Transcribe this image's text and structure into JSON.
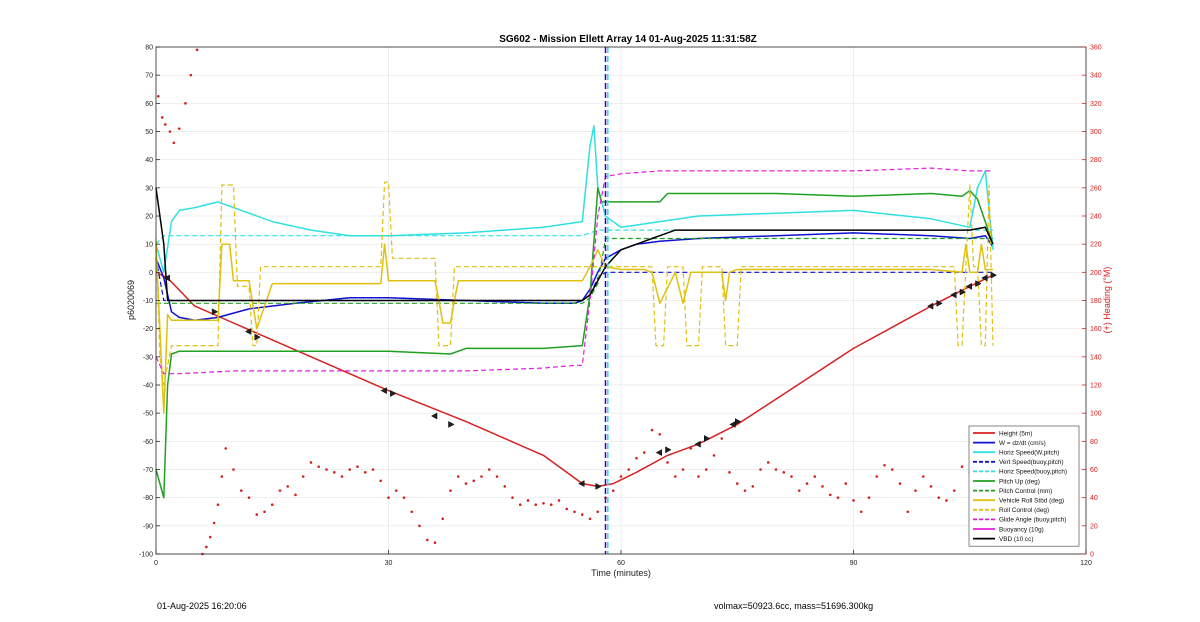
{
  "footer": {
    "timestamp": "01-Aug-2025 16:20:06",
    "summary": "volmax=50923.6cc, mass=51696.300kg"
  },
  "chart_data": {
    "type": "line",
    "title": "SG602 - Mission Ellett Array 14 01-Aug-2025 11:31:58Z",
    "xlabel": "Time (minutes)",
    "ylabel": "p6020069",
    "y2label": "(+) Heading (°M)",
    "xlim": [
      0,
      120
    ],
    "ylim": [
      -100,
      80
    ],
    "y2lim": [
      0,
      360
    ],
    "xticks": [
      0,
      30,
      60,
      90,
      120
    ],
    "yticks": [
      -100,
      -90,
      -80,
      -70,
      -60,
      -50,
      -40,
      -30,
      -20,
      -10,
      0,
      10,
      20,
      30,
      40,
      50,
      60,
      70,
      80
    ],
    "y2ticks": [
      0,
      20,
      40,
      60,
      80,
      100,
      120,
      140,
      160,
      180,
      200,
      220,
      240,
      260,
      280,
      300,
      320,
      340,
      360
    ],
    "grid": true,
    "legend_position": "bottom-right",
    "colors": {
      "height": "#d62020",
      "w": "#1010d0",
      "horiz": "#30e0e0",
      "pitch": "#20a020",
      "yellow": "#e0c010",
      "glide": "#e020e0",
      "vbd": "#000000",
      "right_axis": "#d62020"
    },
    "vertical_lines": [
      {
        "x": 58,
        "color": "#1010d0",
        "style": "dashed"
      },
      {
        "x": 58.3,
        "color": "#30e0e0",
        "style": "dashed"
      }
    ],
    "series": [
      {
        "name": "Height (5m)",
        "color": "#d62020",
        "style": "solid",
        "width": 1.5,
        "x": [
          0,
          1.5,
          5,
          10,
          20,
          30,
          40,
          50,
          55,
          57,
          59,
          62,
          66,
          70,
          75,
          80,
          90,
          100,
          105,
          108
        ],
        "y": [
          0,
          -2,
          -12,
          -18,
          -30,
          -42,
          -53,
          -65,
          -75,
          -76,
          -75,
          -71,
          -65,
          -61,
          -54,
          -45,
          -27,
          -12,
          -5,
          -1
        ]
      },
      {
        "name": "W = dz/dt (cm/s)",
        "color": "#1010d0",
        "style": "solid",
        "width": 1.5,
        "x": [
          0,
          1,
          2,
          3,
          5,
          8,
          12,
          18,
          25,
          30,
          40,
          50,
          54,
          55,
          56,
          57,
          58,
          60,
          62,
          65,
          70,
          80,
          90,
          100,
          105,
          107,
          108
        ],
        "y": [
          5,
          -2,
          -14,
          -16,
          -17,
          -16,
          -13,
          -11,
          -9,
          -9,
          -10,
          -11,
          -11,
          -10,
          -6,
          0,
          5,
          8,
          10,
          11,
          12,
          13,
          14,
          13,
          12,
          13,
          9
        ]
      },
      {
        "name": "Horiz Speed(W,pitch)",
        "color": "#30e0e0",
        "style": "solid",
        "width": 1.5,
        "x": [
          0,
          1,
          2,
          3,
          5,
          8,
          10,
          15,
          20,
          25,
          30,
          40,
          50,
          55,
          56,
          56.5,
          57,
          58,
          60,
          65,
          70,
          80,
          90,
          100,
          105,
          106,
          107,
          108
        ],
        "y": [
          10,
          0,
          18,
          22,
          23,
          25,
          23,
          18,
          15,
          13,
          13,
          14,
          16,
          18,
          45,
          52,
          30,
          20,
          16,
          18,
          20,
          21,
          22,
          19,
          16,
          30,
          36,
          8
        ]
      },
      {
        "name": "Vert Speed(buoy,pitch)",
        "color": "#1010d0",
        "style": "dashed",
        "width": 1.2,
        "x": [
          0,
          1,
          2,
          55,
          56,
          57,
          58,
          108
        ],
        "y": [
          5,
          -10,
          -10,
          -10,
          -8,
          -2,
          0,
          0
        ]
      },
      {
        "name": "Horiz Speed(buoy,pitch)",
        "color": "#30e0e0",
        "style": "dashed",
        "width": 1.2,
        "x": [
          0,
          1,
          2,
          55,
          56,
          57,
          58,
          108
        ],
        "y": [
          10,
          13,
          13,
          13,
          14,
          15,
          15,
          15
        ]
      },
      {
        "name": "Pitch Up (deg)",
        "color": "#20a020",
        "style": "solid",
        "width": 1.5,
        "x": [
          0,
          1,
          1.5,
          2,
          3,
          5,
          10,
          20,
          30,
          38,
          40,
          50,
          55,
          56,
          57,
          57.5,
          58,
          60,
          65,
          66,
          70,
          80,
          90,
          100,
          104,
          105,
          106,
          108
        ],
        "y": [
          -70,
          -80,
          -40,
          -29,
          -28,
          -28,
          -28,
          -28,
          -28,
          -29,
          -27,
          -27,
          -26,
          -8,
          30,
          25,
          25,
          25,
          25,
          28,
          28,
          28,
          27,
          28,
          27,
          29,
          26,
          10
        ]
      },
      {
        "name": "Pitch Control (mm)",
        "color": "#20a020",
        "style": "dashed",
        "width": 1.2,
        "x": [
          0,
          2,
          55,
          56,
          57,
          58,
          108
        ],
        "y": [
          -11,
          -11,
          -11,
          -9,
          -4,
          12,
          12
        ]
      },
      {
        "name": "Vehicle Roll Stbd (deg)",
        "color": "#e0c010",
        "style": "solid",
        "width": 1.5,
        "x": [
          0,
          0.5,
          1,
          1.5,
          2,
          2.5,
          5,
          8,
          8.5,
          9.5,
          10,
          12,
          13,
          15,
          20,
          29,
          29.5,
          30,
          31,
          36,
          36.5,
          37,
          38,
          38.5,
          39,
          45,
          54,
          55,
          56,
          57,
          58,
          60,
          63,
          64,
          65,
          67,
          68,
          69,
          73,
          73.5,
          74,
          75,
          80,
          100,
          104,
          104.5,
          105,
          106,
          106.5,
          107,
          108
        ],
        "y": [
          10,
          -20,
          -50,
          -15,
          -17,
          -17,
          -17,
          -17,
          10,
          10,
          -3,
          -3,
          -20,
          -4,
          -4,
          -4,
          10,
          -3,
          -3,
          -3,
          -10,
          -18,
          -18,
          -10,
          -3,
          -3,
          -3,
          -3,
          2,
          8,
          2,
          1,
          1,
          0,
          -11,
          0,
          -11,
          0,
          0,
          -10,
          0,
          1,
          1,
          1,
          0,
          10,
          0,
          0,
          10,
          1,
          1
        ]
      },
      {
        "name": "Roll Control (deg)",
        "color": "#e0c010",
        "style": "dashed",
        "width": 1.2,
        "x": [
          0,
          0.5,
          1,
          2,
          5,
          8,
          8.5,
          10,
          10.5,
          12,
          12.5,
          13,
          13.5,
          29,
          29.5,
          30,
          30.5,
          36,
          36.5,
          38,
          38.5,
          54,
          55,
          57,
          58,
          64,
          64.5,
          65.5,
          66,
          68,
          68.5,
          70,
          70.5,
          73,
          73.5,
          75,
          75.5,
          103,
          103.5,
          104,
          104.5,
          105,
          105.5,
          106,
          106.5,
          107,
          107.5,
          108
        ],
        "y": [
          12,
          -30,
          -40,
          -26,
          -26,
          -26,
          31,
          31,
          -5,
          -5,
          -26,
          -26,
          2,
          2,
          32,
          32,
          5,
          5,
          -26,
          -26,
          2,
          2,
          2,
          2,
          2,
          2,
          -26,
          -26,
          2,
          2,
          -26,
          -26,
          2,
          2,
          -26,
          -26,
          2,
          2,
          -26,
          -26,
          2,
          31,
          2,
          2,
          -26,
          -26,
          31,
          -26
        ]
      },
      {
        "name": "Glide Angle (buoy,pitch)",
        "color": "#e020e0",
        "style": "dashed",
        "width": 1.2,
        "x": [
          0,
          1,
          2,
          3,
          10,
          20,
          30,
          40,
          50,
          54,
          55,
          56,
          57,
          58,
          60,
          65,
          70,
          80,
          90,
          100,
          105,
          108
        ],
        "y": [
          -30,
          -36,
          -36,
          -36,
          -35,
          -35,
          -35,
          -35,
          -34,
          -33,
          -33,
          -10,
          20,
          34,
          35,
          36,
          36,
          36,
          36,
          37,
          36,
          36
        ]
      },
      {
        "name": "Buoyancy (10g)",
        "color": "#e020e0",
        "style": "solid",
        "width": 1.5,
        "x": [],
        "y": []
      },
      {
        "name": "VBD (10 cc)",
        "color": "#000000",
        "style": "solid",
        "width": 1.5,
        "x": [
          0,
          1,
          1.5,
          2,
          10,
          20,
          30,
          40,
          50,
          55,
          56,
          57,
          58,
          60,
          62,
          63,
          64,
          65,
          66,
          67,
          70,
          80,
          90,
          100,
          105,
          107,
          108
        ],
        "y": [
          30,
          10,
          -10,
          -10,
          -10,
          -10,
          -10,
          -10,
          -10,
          -10,
          -8,
          -3,
          2,
          8,
          10,
          11,
          12,
          13,
          14,
          15,
          15,
          15,
          15,
          15,
          15,
          16,
          10
        ]
      }
    ],
    "heading": {
      "name": "(+) Heading (°M)",
      "color": "#d62020",
      "x": [
        0.3,
        0.8,
        1.2,
        1.8,
        2.3,
        3,
        3.8,
        4.5,
        5.3,
        6,
        6.5,
        7,
        7.5,
        8,
        8.5,
        9,
        10,
        11,
        12,
        13,
        14,
        15,
        16,
        17,
        18,
        19,
        20,
        21,
        22,
        23,
        24,
        25,
        26,
        27,
        28,
        29,
        30,
        31,
        32,
        33,
        34,
        35,
        36,
        37,
        38,
        39,
        40,
        41,
        42,
        43,
        44,
        45,
        46,
        47,
        48,
        49,
        50,
        51,
        52,
        53,
        54,
        55,
        56,
        57,
        58,
        59,
        60,
        61,
        62,
        63,
        64,
        65,
        66,
        67,
        68,
        69,
        70,
        71,
        72,
        73,
        74,
        75,
        76,
        77,
        78,
        79,
        80,
        81,
        82,
        83,
        84,
        85,
        86,
        87,
        88,
        89,
        90,
        91,
        92,
        93,
        94,
        95,
        96,
        97,
        98,
        99,
        100,
        101,
        102,
        103,
        104,
        105,
        106,
        107,
        108
      ],
      "y": [
        325,
        310,
        305,
        300,
        292,
        302,
        320,
        340,
        358,
        0,
        5,
        12,
        22,
        35,
        55,
        75,
        60,
        45,
        40,
        28,
        30,
        35,
        45,
        48,
        42,
        55,
        65,
        62,
        60,
        58,
        55,
        60,
        62,
        58,
        60,
        52,
        40,
        45,
        40,
        30,
        20,
        10,
        8,
        25,
        45,
        55,
        50,
        52,
        55,
        60,
        55,
        48,
        40,
        35,
        38,
        35,
        36,
        35,
        38,
        32,
        30,
        28,
        25,
        30,
        40,
        45,
        55,
        60,
        68,
        72,
        88,
        85,
        65,
        55,
        60,
        75,
        55,
        60,
        70,
        82,
        58,
        50,
        45,
        48,
        60,
        65,
        60,
        58,
        55,
        45,
        50,
        55,
        48,
        42,
        40,
        50,
        38,
        30,
        40,
        55,
        63,
        60,
        50,
        30,
        45,
        55,
        48,
        40,
        38,
        45,
        62,
        58,
        50,
        45,
        60
      ]
    },
    "markers": {
      "series": "Height (5m)",
      "x": [
        1.5,
        7.5,
        12,
        13,
        29.5,
        30.5,
        36,
        38,
        55,
        57,
        65,
        66,
        70,
        71,
        74.5,
        75,
        100,
        101,
        103,
        104,
        105,
        106,
        107,
        108
      ],
      "y": [
        -2,
        -14,
        -21,
        -23,
        -42,
        -43,
        -51,
        -54,
        -75,
        -76,
        -64,
        -63,
        -61,
        -59,
        -54,
        -53,
        -12,
        -11,
        -8,
        -7,
        -5,
        -4,
        -2,
        -1
      ]
    },
    "legend": [
      {
        "label": "Height (5m)",
        "color": "#d62020",
        "style": "solid"
      },
      {
        "label": "W = dz/dt (cm/s)",
        "color": "#1010d0",
        "style": "solid"
      },
      {
        "label": "Horiz Speed(W,pitch)",
        "color": "#30e0e0",
        "style": "solid"
      },
      {
        "label": "Vert Speed(buoy,pitch)",
        "color": "#1010d0",
        "style": "dashed"
      },
      {
        "label": "Horiz Speed(buoy,pitch)",
        "color": "#30e0e0",
        "style": "dashed"
      },
      {
        "label": "Pitch Up (deg)",
        "color": "#20a020",
        "style": "solid"
      },
      {
        "label": "Pitch Control (mm)",
        "color": "#20a020",
        "style": "dashed"
      },
      {
        "label": "Vehicle Roll Stbd (deg)",
        "color": "#e0c010",
        "style": "solid"
      },
      {
        "label": "Roll Control (deg)",
        "color": "#e0c010",
        "style": "dashed"
      },
      {
        "label": "Glide Angle (buoy,pitch)",
        "color": "#e020e0",
        "style": "dashed"
      },
      {
        "label": "Buoyancy (10g)",
        "color": "#e020e0",
        "style": "solid"
      },
      {
        "label": "VBD (10 cc)",
        "color": "#000000",
        "style": "solid"
      }
    ]
  }
}
